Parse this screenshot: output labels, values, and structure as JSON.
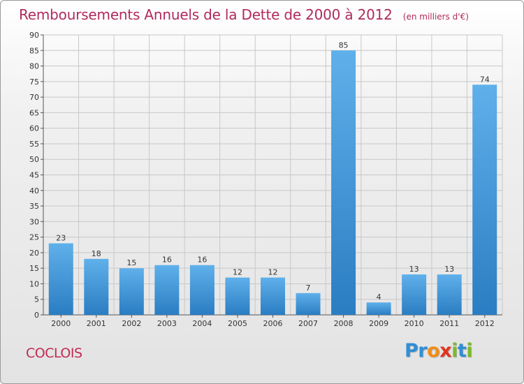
{
  "header": {
    "title": "Remboursements Annuels de la Dette de 2000 à 2012",
    "unit": "(en milliers d'€)"
  },
  "footer": {
    "commune": "COCLOIS",
    "logo_letters": [
      "P",
      "r",
      "o",
      "x",
      "i",
      "t",
      "i"
    ]
  },
  "colors": {
    "title": "#b02a5d",
    "commune": "#c32a52",
    "bar_top": "#5fb0ea",
    "bar_bottom": "#2a7dc2",
    "grid": "#c8c8c8",
    "axis": "#555555"
  },
  "chart_data": {
    "type": "bar",
    "title": "Remboursements Annuels de la Dette de 2000 à 2012",
    "ylabel": "",
    "xlabel": "",
    "ylim": [
      0,
      90
    ],
    "yticks": [
      0,
      5,
      10,
      15,
      20,
      25,
      30,
      35,
      40,
      45,
      50,
      55,
      60,
      65,
      70,
      75,
      80,
      85,
      90
    ],
    "grid": true,
    "categories": [
      "2000",
      "2001",
      "2002",
      "2003",
      "2004",
      "2005",
      "2006",
      "2007",
      "2008",
      "2009",
      "2010",
      "2011",
      "2012"
    ],
    "values": [
      23,
      18,
      15,
      16,
      16,
      12,
      12,
      7,
      85,
      4,
      13,
      13,
      74
    ]
  }
}
